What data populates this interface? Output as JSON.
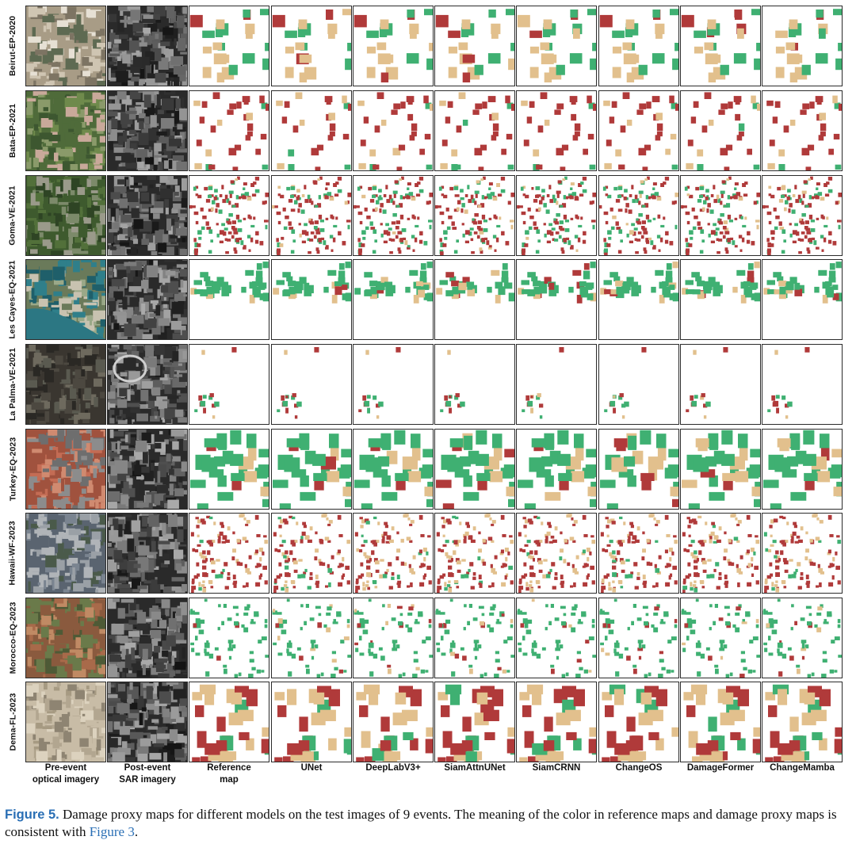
{
  "figure": {
    "row_labels": [
      "Beirut-EP-2020",
      "Bata-EP-2021",
      "Goma-VE-2021",
      "Les Cayes-EQ-2021",
      "La Palma-VE-2021",
      "Turkey-EQ-2023",
      "Hawaii-WF-2023",
      "Morocco-EQ-2023",
      "Dema-FL-2023"
    ],
    "column_labels": [
      [
        "Pre-event",
        "optical imagery"
      ],
      [
        "Post-event",
        "SAR imagery"
      ],
      [
        "Reference",
        "map"
      ],
      [
        "UNet"
      ],
      [
        "DeepLabV3+"
      ],
      [
        "SiamAttnUNet"
      ],
      [
        "SiamCRNN"
      ],
      [
        "ChangeOS"
      ],
      [
        "DamageFormer"
      ],
      [
        "ChangeMamba"
      ]
    ],
    "colors": {
      "intact": "#3fb072",
      "damaged": "#e2c08d",
      "destroyed": "#b03a3a"
    }
  },
  "caption": {
    "tag": "Figure 5.",
    "body": " Damage proxy maps for different models on the test images of 9 events. The meaning of the color in reference maps and damage proxy maps is consistent with ",
    "ref": "Figure 3",
    "end": "."
  }
}
